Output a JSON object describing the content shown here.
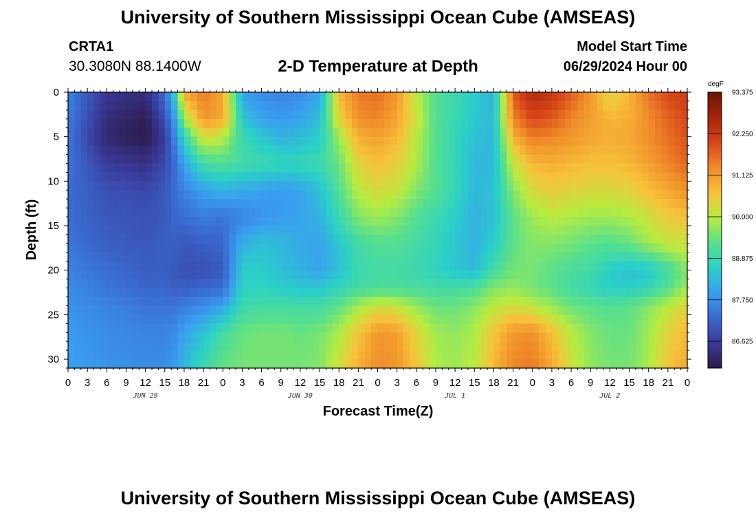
{
  "header": {
    "title": "University of Southern Mississippi Ocean Cube (AMSEAS)",
    "station_id": "CRTA1",
    "station_coords": "30.3080N  88.1400W",
    "plot_title": "2-D Temperature at Depth",
    "model_start_label": "Model Start Time",
    "model_start_value": "06/29/2024 Hour 00"
  },
  "footer": {
    "title": "University of Southern Mississippi Ocean Cube (AMSEAS)"
  },
  "colors": {
    "ramp": [
      "#2b1a4a",
      "#3a3a9a",
      "#3a6ad0",
      "#3a9ef0",
      "#2ad0c8",
      "#5ae08a",
      "#b8ec40",
      "#f7c23a",
      "#f08c2a",
      "#d84418",
      "#a8240a",
      "#6a1404"
    ]
  },
  "chart_data": {
    "type": "heatmap",
    "title": "2-D Temperature at Depth",
    "xlabel": "Forecast Time(Z)",
    "ylabel": "Depth (ft)",
    "x_hours_range": [
      0,
      96
    ],
    "xlim": [
      0,
      96
    ],
    "ylim": [
      0,
      31
    ],
    "x_tick_hours": [
      0,
      3,
      6,
      9,
      12,
      15,
      18,
      21,
      24,
      27,
      30,
      33,
      36,
      39,
      42,
      45,
      48,
      51,
      54,
      57,
      60,
      63,
      66,
      69,
      72,
      75,
      78,
      81,
      84,
      87,
      90,
      93,
      96
    ],
    "x_tick_labels": [
      "0",
      "3",
      "6",
      "9",
      "12",
      "15",
      "18",
      "21",
      "0",
      "3",
      "6",
      "9",
      "12",
      "15",
      "18",
      "21",
      "0",
      "3",
      "6",
      "9",
      "12",
      "15",
      "18",
      "21",
      "0",
      "3",
      "6",
      "9",
      "12",
      "15",
      "18",
      "21",
      "0"
    ],
    "day_labels": [
      {
        "hour": 12,
        "label": "JUN 29"
      },
      {
        "hour": 36,
        "label": "JUN 30"
      },
      {
        "hour": 60,
        "label": "JUL 1"
      },
      {
        "hour": 84,
        "label": "JUL 2"
      }
    ],
    "y_ticks": [
      0,
      5,
      10,
      15,
      20,
      25,
      30
    ],
    "y_tick_labels": [
      "0",
      "5",
      "10",
      "15",
      "20",
      "25",
      "30"
    ],
    "colorbar": {
      "unit": "degF",
      "min": 85.9,
      "max": 93.375,
      "ticks": [
        93.375,
        92.25,
        91.125,
        90.0,
        88.875,
        87.75,
        86.625
      ],
      "tick_labels": [
        "93.375",
        "92.250",
        "91.125",
        "90.000",
        "88.875",
        "87.750",
        "86.625"
      ]
    },
    "sample_hours": [
      0,
      6,
      12,
      15,
      16.5,
      18,
      21,
      24,
      27,
      30,
      33,
      36,
      39,
      42,
      45,
      48,
      51,
      54,
      57,
      60,
      63,
      66,
      69,
      72,
      75,
      78,
      81,
      84,
      87,
      90,
      93,
      96
    ],
    "sample_depths": [
      0,
      3,
      5,
      8,
      11,
      14,
      17,
      20,
      22,
      24,
      27,
      31
    ],
    "temperature_degF": [
      [
        87.6,
        86.5,
        86.3,
        87.3,
        88.6,
        91.0,
        91.5,
        91.0,
        88.0,
        87.7,
        87.6,
        87.7,
        88.0,
        90.8,
        91.5,
        91.6,
        91.2,
        90.0,
        89.2,
        88.9,
        88.6,
        88.2,
        91.8,
        92.6,
        92.3,
        91.8,
        91.2,
        90.3,
        90.8,
        91.6,
        92.0,
        92.2
      ],
      [
        87.5,
        86.3,
        86.0,
        86.9,
        87.9,
        89.8,
        91.2,
        91.0,
        88.5,
        88.0,
        87.9,
        88.0,
        88.4,
        90.4,
        91.3,
        91.4,
        91.0,
        90.2,
        89.2,
        88.9,
        88.5,
        88.3,
        91.4,
        92.0,
        91.8,
        91.4,
        91.1,
        90.8,
        90.9,
        91.3,
        91.7,
        92.0
      ],
      [
        87.4,
        86.2,
        85.9,
        86.6,
        87.6,
        88.8,
        90.3,
        90.0,
        88.9,
        88.5,
        88.2,
        88.3,
        88.6,
        89.8,
        90.9,
        91.1,
        90.8,
        90.0,
        89.2,
        88.8,
        88.4,
        88.3,
        90.9,
        91.5,
        91.4,
        91.2,
        91.0,
        90.9,
        91.0,
        91.3,
        91.6,
        91.9
      ],
      [
        87.4,
        86.6,
        86.4,
        86.8,
        87.3,
        88.0,
        89.0,
        89.2,
        89.0,
        88.9,
        88.8,
        88.8,
        88.9,
        89.4,
        90.4,
        90.7,
        90.5,
        89.9,
        89.2,
        88.8,
        88.3,
        88.3,
        90.1,
        90.8,
        90.9,
        90.8,
        90.7,
        90.7,
        90.8,
        91.1,
        91.4,
        91.7
      ],
      [
        87.3,
        86.9,
        86.8,
        87.0,
        87.3,
        87.6,
        88.0,
        88.2,
        88.1,
        88.0,
        87.9,
        88.0,
        88.4,
        89.2,
        90.0,
        90.3,
        90.1,
        89.6,
        89.2,
        88.8,
        88.3,
        88.4,
        89.6,
        90.3,
        90.5,
        90.4,
        90.3,
        90.3,
        90.4,
        90.7,
        91.0,
        91.3
      ],
      [
        87.3,
        87.0,
        86.9,
        87.0,
        87.2,
        87.3,
        87.5,
        87.4,
        87.6,
        87.8,
        87.9,
        88.0,
        88.2,
        88.9,
        89.6,
        89.8,
        89.6,
        89.2,
        88.9,
        88.6,
        88.2,
        88.4,
        89.3,
        89.8,
        90.0,
        89.9,
        89.8,
        89.8,
        89.9,
        90.2,
        90.5,
        90.7
      ],
      [
        87.4,
        87.1,
        87.0,
        87.1,
        87.1,
        87.0,
        87.1,
        87.2,
        88.2,
        88.4,
        88.3,
        88.1,
        88.0,
        88.5,
        89.0,
        89.2,
        89.2,
        89.0,
        88.8,
        88.5,
        88.2,
        88.6,
        89.3,
        89.6,
        89.6,
        89.5,
        89.3,
        89.2,
        89.4,
        89.8,
        90.1,
        90.2
      ],
      [
        87.6,
        87.3,
        87.1,
        87.1,
        87.0,
        86.9,
        86.9,
        87.0,
        88.6,
        88.6,
        88.4,
        88.2,
        88.0,
        88.4,
        88.9,
        89.0,
        89.0,
        88.9,
        88.7,
        88.5,
        88.3,
        89.0,
        89.5,
        89.5,
        89.3,
        89.1,
        89.0,
        88.6,
        88.4,
        88.5,
        89.0,
        89.6
      ],
      [
        87.7,
        87.4,
        87.2,
        87.2,
        87.1,
        87.1,
        87.2,
        87.3,
        88.7,
        88.7,
        88.6,
        88.5,
        88.5,
        88.8,
        89.0,
        89.1,
        89.1,
        89.1,
        89.0,
        89.0,
        89.1,
        89.6,
        89.7,
        89.5,
        89.3,
        89.0,
        88.8,
        88.6,
        88.6,
        88.8,
        89.2,
        89.8
      ],
      [
        87.8,
        87.6,
        87.4,
        87.4,
        87.4,
        87.5,
        87.7,
        88.0,
        88.9,
        89.0,
        89.0,
        89.0,
        89.0,
        89.3,
        89.8,
        90.2,
        90.1,
        89.7,
        89.4,
        89.4,
        89.6,
        90.0,
        90.2,
        90.0,
        89.7,
        89.4,
        89.3,
        89.2,
        89.3,
        89.6,
        90.0,
        90.4
      ],
      [
        87.9,
        87.7,
        87.6,
        87.6,
        87.7,
        88.0,
        88.4,
        89.0,
        89.4,
        89.5,
        89.5,
        89.4,
        89.5,
        89.9,
        90.6,
        91.2,
        91.1,
        90.4,
        89.8,
        89.7,
        89.9,
        90.6,
        91.2,
        91.3,
        90.7,
        90.0,
        89.6,
        89.4,
        89.4,
        89.8,
        90.4,
        90.8
      ],
      [
        88.0,
        87.8,
        87.7,
        87.7,
        87.9,
        88.3,
        88.9,
        89.4,
        89.5,
        89.5,
        89.5,
        89.5,
        89.6,
        90.2,
        90.9,
        91.3,
        91.2,
        90.6,
        89.9,
        89.8,
        90.0,
        90.8,
        91.4,
        91.5,
        91.0,
        90.2,
        89.7,
        89.5,
        89.5,
        89.9,
        90.6,
        91.0
      ]
    ]
  }
}
